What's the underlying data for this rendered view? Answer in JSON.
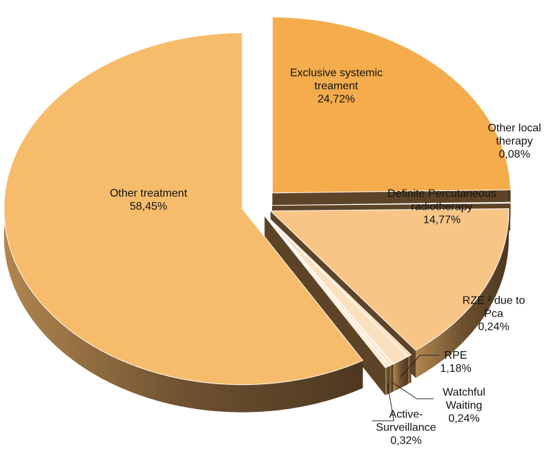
{
  "chart_data": {
    "type": "pie",
    "categories": [
      "Exclusive systemic treament",
      "Other local therapy",
      "Definite Percutaneous radiotherapy",
      "RZE ² due to Pca",
      "RPE",
      "Watchful Waiting",
      "Active-Surveillance",
      "Other treatment"
    ],
    "values": [
      24.72,
      0.08,
      14.77,
      0.24,
      1.18,
      0.24,
      0.32,
      58.45
    ],
    "value_labels": [
      "24,72%",
      "0,08%",
      "14,77%",
      "0,24%",
      "1,18%",
      "0,24%",
      "0,32%",
      "58,45%"
    ],
    "colors": [
      "#f4ac4d",
      "#f6b862",
      "#f8c587",
      "#fbd9ad",
      "#fbe0bd",
      "#fce6c9",
      "#fdebd3",
      "#f6bc6c"
    ]
  }
}
